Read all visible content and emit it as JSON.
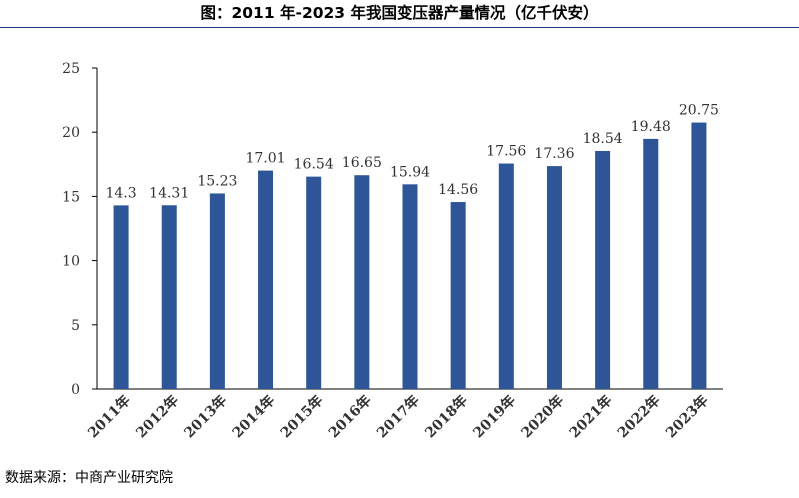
{
  "title": "图：2011 年-2023 年我国变压器产量情况（亿千伏安）",
  "source": "数据来源：中商产业研究院",
  "colors": {
    "bar": "#2e5597",
    "title_rule": "#1f3f7a"
  },
  "chart_data": {
    "type": "bar",
    "title": "图：2011 年-2023 年我国变压器产量情况（亿千伏安）",
    "xlabel": "",
    "ylabel": "",
    "unit": "亿千伏安",
    "ylim": [
      0,
      25
    ],
    "yticks": [
      0,
      5,
      10,
      15,
      20,
      25
    ],
    "grid": false,
    "legend": "none",
    "categories": [
      "2011年",
      "2012年",
      "2013年",
      "2014年",
      "2015年",
      "2016年",
      "2017年",
      "2018年",
      "2019年",
      "2020年",
      "2021年",
      "2022年",
      "2023年"
    ],
    "values": [
      14.3,
      14.31,
      15.23,
      17.01,
      16.54,
      16.65,
      15.94,
      14.56,
      17.56,
      17.36,
      18.54,
      19.48,
      20.75
    ],
    "data_labels": [
      "14.3",
      "14.31",
      "15.23",
      "17.01",
      "16.54",
      "16.65",
      "15.94",
      "14.56",
      "17.56",
      "17.36",
      "18.54",
      "19.48",
      "20.75"
    ]
  }
}
